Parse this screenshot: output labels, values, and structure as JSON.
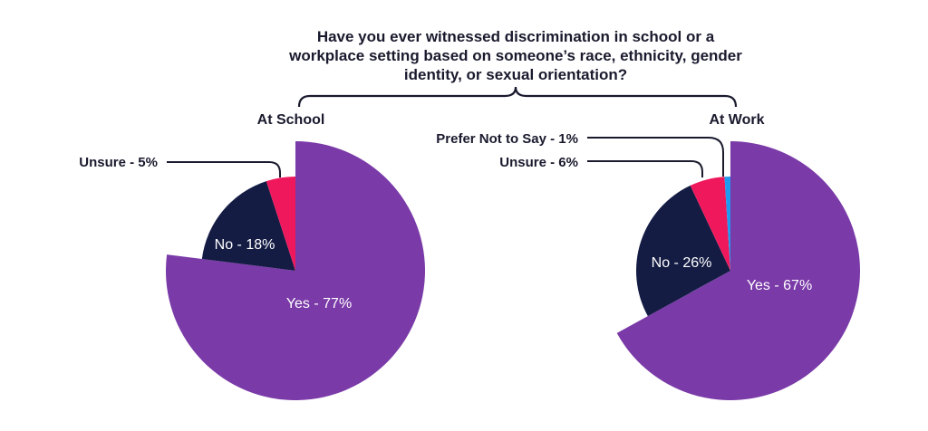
{
  "title_lines": [
    "Have you ever witnessed discrimination in school or a",
    "workplace setting based on someone’s race, ethnicity, gender",
    "identity, or sexual orientation?"
  ],
  "colors": {
    "yes": "#7a3aa8",
    "no": "#141c44",
    "unsure": "#f0185c",
    "prefer_not": "#1e9af0",
    "text_dark": "#1a1a2e",
    "text_light": "#ffffff"
  },
  "chart_data": [
    {
      "type": "pie",
      "title": "At School",
      "slices": [
        {
          "label": "Yes",
          "value": 77,
          "text": "Yes - 77%",
          "color": "#7a3aa8",
          "label_position": "inside"
        },
        {
          "label": "No",
          "value": 18,
          "text": "No - 18%",
          "color": "#141c44",
          "label_position": "inside"
        },
        {
          "label": "Unsure",
          "value": 5,
          "text": "Unsure - 5%",
          "color": "#f0185c",
          "label_position": "callout"
        }
      ]
    },
    {
      "type": "pie",
      "title": "At Work",
      "slices": [
        {
          "label": "Yes",
          "value": 67,
          "text": "Yes - 67%",
          "color": "#7a3aa8",
          "label_position": "inside"
        },
        {
          "label": "No",
          "value": 26,
          "text": "No - 26%",
          "color": "#141c44",
          "label_position": "inside"
        },
        {
          "label": "Unsure",
          "value": 6,
          "text": "Unsure - 6%",
          "color": "#f0185c",
          "label_position": "callout"
        },
        {
          "label": "Prefer Not to Say",
          "value": 1,
          "text": "Prefer Not to Say - 1%",
          "color": "#1e9af0",
          "label_position": "callout"
        }
      ]
    }
  ]
}
